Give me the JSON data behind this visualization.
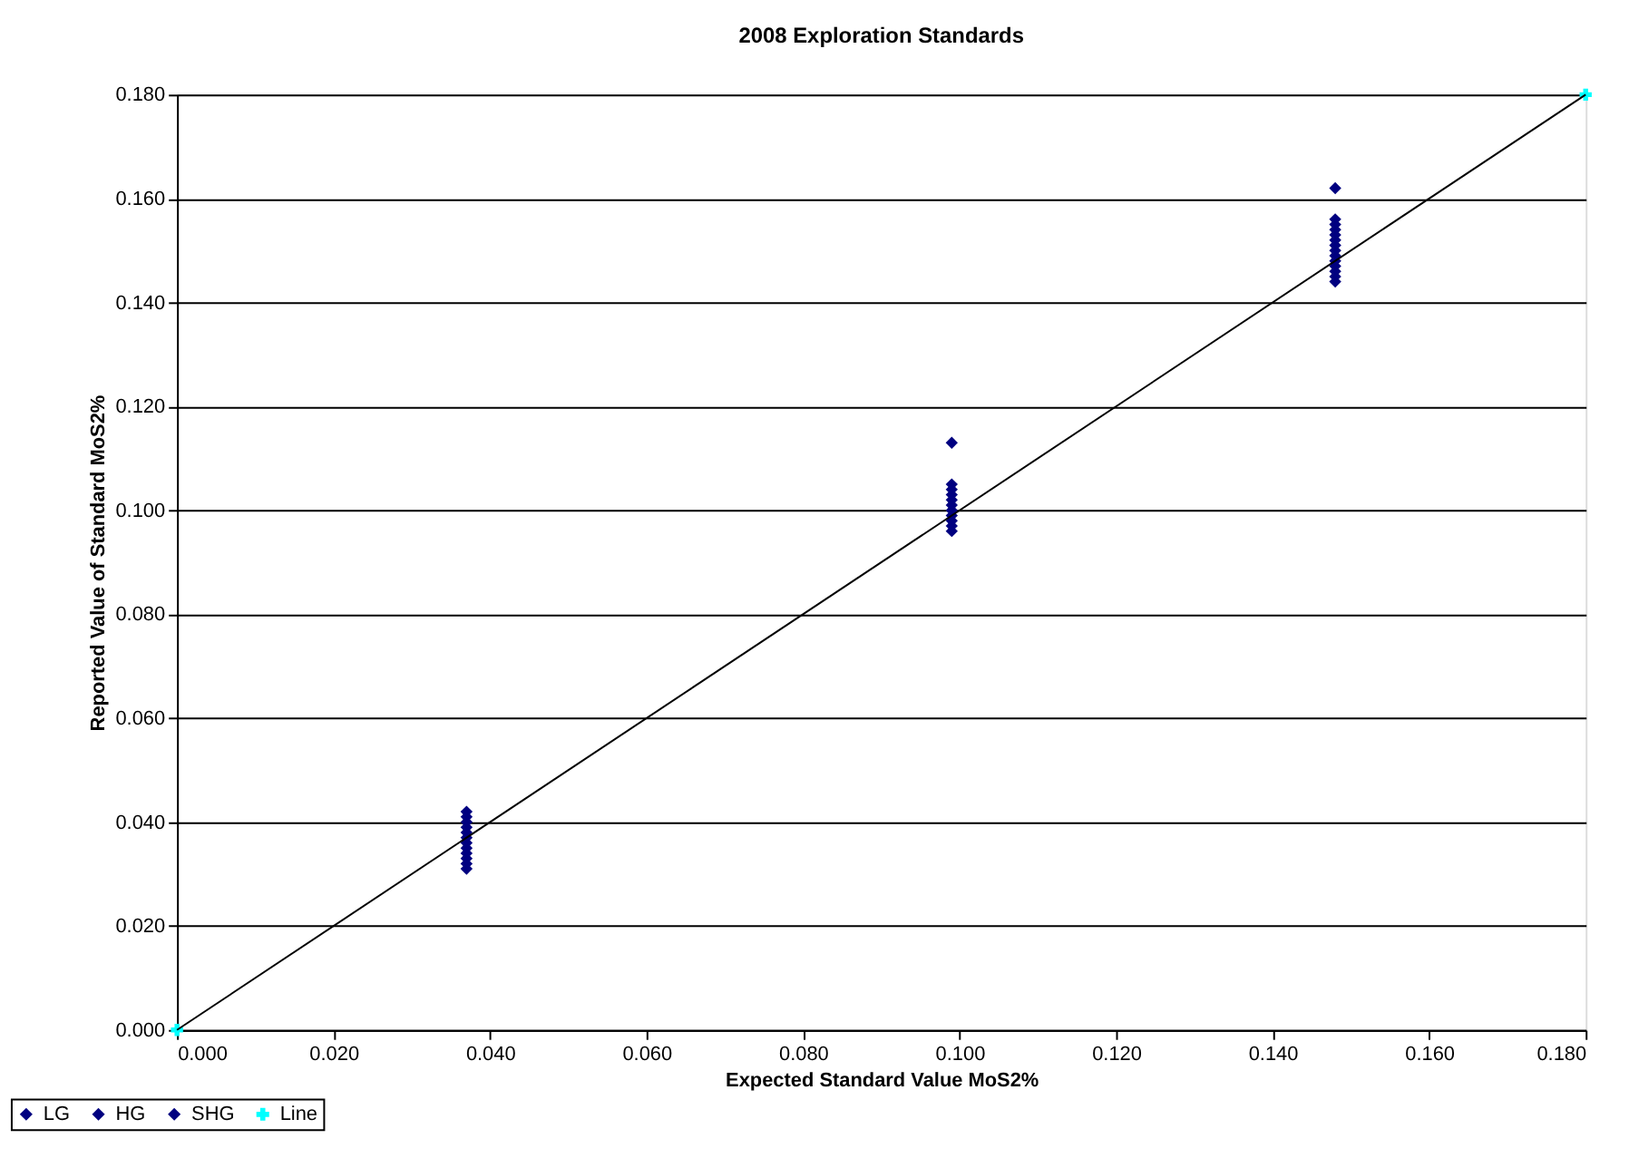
{
  "chart_data": {
    "type": "scatter",
    "title": "2008 Exploration Standards",
    "xlabel": "Expected Standard Value MoS2%",
    "ylabel": "Reported Value of Standard MoS2%",
    "xlim": [
      0,
      0.18
    ],
    "ylim": [
      0,
      0.18
    ],
    "xticks": [
      {
        "value": 0,
        "label": "0.000"
      },
      {
        "value": 0.02,
        "label": "0.020"
      },
      {
        "value": 0.04,
        "label": "0.040"
      },
      {
        "value": 0.06,
        "label": "0.060"
      },
      {
        "value": 0.08,
        "label": "0.080"
      },
      {
        "value": 0.1,
        "label": "0.100"
      },
      {
        "value": 0.12,
        "label": "0.120"
      },
      {
        "value": 0.14,
        "label": "0.140"
      },
      {
        "value": 0.16,
        "label": "0.160"
      },
      {
        "value": 0.18,
        "label": "0.180"
      }
    ],
    "yticks": [
      {
        "value": 0,
        "label": "0.000"
      },
      {
        "value": 0.02,
        "label": "0.020"
      },
      {
        "value": 0.04,
        "label": "0.040"
      },
      {
        "value": 0.06,
        "label": "0.060"
      },
      {
        "value": 0.08,
        "label": "0.080"
      },
      {
        "value": 0.1,
        "label": "0.100"
      },
      {
        "value": 0.12,
        "label": "0.120"
      },
      {
        "value": 0.14,
        "label": "0.140"
      },
      {
        "value": 0.16,
        "label": "0.160"
      },
      {
        "value": 0.18,
        "label": "0.180"
      }
    ],
    "grid": "y",
    "legend": "bottom left",
    "series": [
      {
        "name": "LG",
        "marker": "diamond",
        "color": "#000080",
        "x": [
          0.037,
          0.037,
          0.037,
          0.037,
          0.037,
          0.037,
          0.037,
          0.037,
          0.037,
          0.037,
          0.037,
          0.037
        ],
        "values": [
          0.031,
          0.032,
          0.033,
          0.034,
          0.035,
          0.036,
          0.037,
          0.038,
          0.039,
          0.04,
          0.041,
          0.042
        ]
      },
      {
        "name": "HG",
        "marker": "diamond",
        "color": "#000080",
        "x": [
          0.099,
          0.099,
          0.099,
          0.099,
          0.099,
          0.099,
          0.099,
          0.099,
          0.099,
          0.099,
          0.099
        ],
        "values": [
          0.096,
          0.097,
          0.098,
          0.099,
          0.1,
          0.101,
          0.102,
          0.103,
          0.104,
          0.105,
          0.113
        ]
      },
      {
        "name": "SHG",
        "marker": "diamond",
        "color": "#000080",
        "x": [
          0.148,
          0.148,
          0.148,
          0.148,
          0.148,
          0.148,
          0.148,
          0.148,
          0.148,
          0.148,
          0.148,
          0.148,
          0.148,
          0.148
        ],
        "values": [
          0.144,
          0.145,
          0.146,
          0.147,
          0.148,
          0.149,
          0.15,
          0.151,
          0.152,
          0.153,
          0.154,
          0.155,
          0.156,
          0.162
        ]
      },
      {
        "name": "Line",
        "type": "line",
        "marker": "cross",
        "line_style": "solid",
        "color": "#00ffff",
        "x": [
          0,
          0.18
        ],
        "values": [
          0,
          0.18
        ]
      }
    ]
  }
}
